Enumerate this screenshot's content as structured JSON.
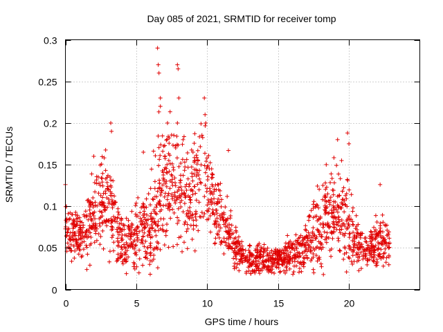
{
  "chart_data": {
    "type": "scatter",
    "title": "Day 085 of 2021, SRMTID for receiver tomp",
    "xlabel": "GPS time / hours",
    "ylabel": "SRMTID / TECUs",
    "xlim": [
      0,
      25
    ],
    "ylim": [
      0,
      0.3
    ],
    "x_ticks": [
      0,
      5,
      10,
      15,
      20
    ],
    "x_tick_labels": [
      "0",
      "5",
      "10",
      "15",
      "20"
    ],
    "y_ticks": [
      0,
      0.05,
      0.1,
      0.15,
      0.2,
      0.25,
      0.3
    ],
    "y_tick_labels": [
      "0",
      "0.05",
      "0.1",
      "0.15",
      "0.2",
      "0.25",
      "0.3"
    ],
    "grid": true,
    "marker": "+",
    "color": "#e00000",
    "profile": {
      "description": "approximate envelope of the scatter (hours -> TECU)",
      "hours": [
        0,
        0.5,
        1,
        1.5,
        2,
        2.5,
        3,
        3.5,
        4,
        4.5,
        5,
        5.5,
        6,
        6.5,
        7,
        7.5,
        8,
        8.5,
        9,
        9.5,
        10,
        10.5,
        11,
        11.5,
        12,
        12.5,
        13,
        13.5,
        14,
        14.5,
        15,
        15.5,
        16,
        16.5,
        17,
        17.5,
        18,
        18.5,
        19,
        19.5,
        20,
        20.5,
        21,
        21.5,
        22,
        22.5,
        22.9
      ],
      "center": [
        0.075,
        0.065,
        0.065,
        0.07,
        0.09,
        0.1,
        0.1,
        0.085,
        0.055,
        0.06,
        0.065,
        0.075,
        0.07,
        0.1,
        0.12,
        0.13,
        0.11,
        0.115,
        0.12,
        0.135,
        0.13,
        0.1,
        0.08,
        0.065,
        0.05,
        0.04,
        0.035,
        0.035,
        0.035,
        0.037,
        0.037,
        0.038,
        0.04,
        0.045,
        0.05,
        0.07,
        0.08,
        0.09,
        0.095,
        0.09,
        0.08,
        0.06,
        0.05,
        0.05,
        0.055,
        0.055,
        0.05
      ],
      "spread": [
        0.02,
        0.018,
        0.02,
        0.025,
        0.03,
        0.035,
        0.035,
        0.03,
        0.02,
        0.02,
        0.025,
        0.03,
        0.03,
        0.05,
        0.05,
        0.05,
        0.04,
        0.04,
        0.04,
        0.04,
        0.04,
        0.03,
        0.025,
        0.02,
        0.015,
        0.012,
        0.012,
        0.012,
        0.012,
        0.012,
        0.012,
        0.012,
        0.013,
        0.015,
        0.02,
        0.03,
        0.035,
        0.035,
        0.035,
        0.035,
        0.03,
        0.02,
        0.015,
        0.015,
        0.02,
        0.02,
        0.015
      ]
    },
    "highlights": [
      {
        "x": 0.0,
        "y": 0.126
      },
      {
        "x": 2.0,
        "y": 0.16
      },
      {
        "x": 3.2,
        "y": 0.2
      },
      {
        "x": 3.25,
        "y": 0.19
      },
      {
        "x": 5.5,
        "y": 0.165
      },
      {
        "x": 6.5,
        "y": 0.29
      },
      {
        "x": 6.55,
        "y": 0.27
      },
      {
        "x": 6.6,
        "y": 0.26
      },
      {
        "x": 6.7,
        "y": 0.23
      },
      {
        "x": 6.7,
        "y": 0.22
      },
      {
        "x": 7.2,
        "y": 0.2
      },
      {
        "x": 7.9,
        "y": 0.27
      },
      {
        "x": 7.95,
        "y": 0.265
      },
      {
        "x": 8.0,
        "y": 0.23
      },
      {
        "x": 7.9,
        "y": 0.2
      },
      {
        "x": 8.3,
        "y": 0.18
      },
      {
        "x": 9.0,
        "y": 0.165
      },
      {
        "x": 9.8,
        "y": 0.23
      },
      {
        "x": 9.85,
        "y": 0.21
      },
      {
        "x": 9.9,
        "y": 0.2
      },
      {
        "x": 11.5,
        "y": 0.167
      },
      {
        "x": 18.4,
        "y": 0.15
      },
      {
        "x": 19.2,
        "y": 0.18
      },
      {
        "x": 19.9,
        "y": 0.188
      },
      {
        "x": 20.0,
        "y": 0.175
      },
      {
        "x": 22.2,
        "y": 0.126
      },
      {
        "x": 18.2,
        "y": 0.018
      }
    ]
  }
}
